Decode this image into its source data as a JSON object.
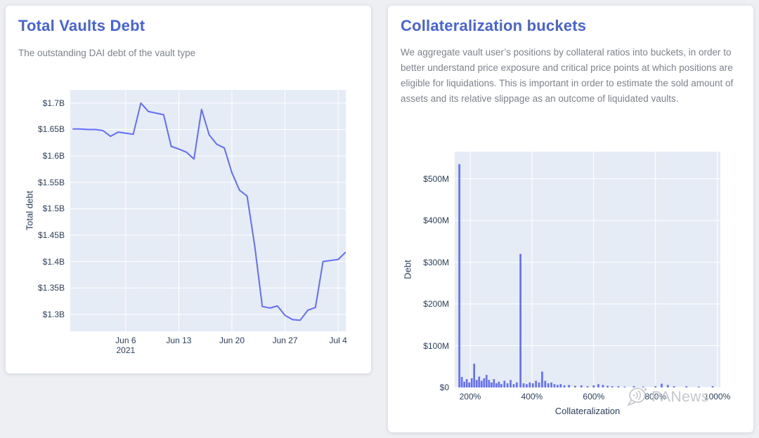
{
  "cards": {
    "total_vaults_debt": {
      "title": "Total Vaults Debt",
      "subtitle": "The outstanding DAI debt of the vault type"
    },
    "collateralization_buckets": {
      "title": "Collateralization buckets",
      "description": "We aggregate vault user’s positions by collateral ratios into buckets, in order to better understand price exposure and critical price points at which positions are eligible for liquidations. This is important in order to estimate the sold amount of assets and its relative slippage as an outcome of liquidated vaults."
    }
  },
  "watermark": {
    "text": "PANews"
  },
  "colors": {
    "heading_accent": "#4664d8",
    "series": "#636efa",
    "plot_background": "#e5ecf6",
    "gridline": "#ffffff",
    "axis_text": "#2a3f5f",
    "muted_text": "#7d838c",
    "page_background": "#edeff2",
    "card_background": "#ffffff",
    "watermark_gray": "#c3c7cd"
  },
  "chart_data": [
    {
      "type": "line",
      "title": "Total Vaults Debt",
      "ylabel": "Total debt",
      "y_unit": "USD billions (DAI debt)",
      "x_unit": "days since 2021-05-31",
      "xlim": [
        -1.3,
        35.0
      ],
      "ylim": [
        1.268,
        1.725
      ],
      "grid": true,
      "legend": "none",
      "yticks": {
        "values": [
          1.3,
          1.35,
          1.4,
          1.45,
          1.5,
          1.55,
          1.6,
          1.65,
          1.7
        ],
        "labels": [
          "$1.3B",
          "$1.35B",
          "$1.4B",
          "$1.45B",
          "$1.5B",
          "$1.55B",
          "$1.6B",
          "$1.65B",
          "$1.7B"
        ]
      },
      "xticks": {
        "values": [
          6,
          13,
          20,
          27,
          34
        ],
        "labels": [
          "Jun 6",
          "Jun 13",
          "Jun 20",
          "Jun 27",
          "Jul 4"
        ],
        "sublabels": [
          "2021",
          "",
          "",
          "",
          ""
        ]
      },
      "x": [
        -1,
        0,
        1,
        2,
        3,
        4,
        5,
        6,
        7,
        8,
        9,
        10,
        11,
        12,
        13,
        14,
        15,
        16,
        17,
        18,
        19,
        20,
        21,
        22,
        23,
        24,
        25,
        26,
        27,
        28,
        29,
        30,
        31,
        32,
        33,
        34,
        35
      ],
      "y": [
        1.651,
        1.651,
        1.65,
        1.65,
        1.648,
        1.637,
        1.645,
        1.643,
        1.641,
        1.7,
        1.684,
        1.681,
        1.678,
        1.618,
        1.613,
        1.607,
        1.594,
        1.688,
        1.64,
        1.622,
        1.615,
        1.568,
        1.535,
        1.524,
        1.43,
        1.315,
        1.312,
        1.316,
        1.298,
        1.29,
        1.289,
        1.308,
        1.313,
        1.4,
        1.402,
        1.404,
        1.418
      ]
    },
    {
      "type": "bar",
      "title": "Collateralization buckets",
      "xlabel": "Collateralization",
      "ylabel": "Debt",
      "y_unit": "USD millions (DAI debt)",
      "x_unit": "collateralization ratio %",
      "xlim": [
        150,
        1010
      ],
      "ylim": [
        0,
        565
      ],
      "grid": true,
      "legend": "none",
      "bar_width_pct": 6,
      "yticks": {
        "values": [
          0,
          100,
          200,
          300,
          400,
          500
        ],
        "labels": [
          "$0",
          "$100M",
          "$200M",
          "$300M",
          "$400M",
          "$500M"
        ]
      },
      "xticks": {
        "values": [
          200,
          400,
          600,
          800,
          1000
        ],
        "labels": [
          "200%",
          "400%",
          "600%",
          "800%",
          "1000%"
        ]
      },
      "bars": [
        [
          165,
          535
        ],
        [
          173,
          25
        ],
        [
          181,
          14
        ],
        [
          189,
          20
        ],
        [
          197,
          12
        ],
        [
          205,
          22
        ],
        [
          213,
          57
        ],
        [
          221,
          18
        ],
        [
          229,
          26
        ],
        [
          237,
          16
        ],
        [
          245,
          22
        ],
        [
          253,
          30
        ],
        [
          261,
          18
        ],
        [
          269,
          12
        ],
        [
          277,
          20
        ],
        [
          285,
          10
        ],
        [
          293,
          14
        ],
        [
          301,
          8
        ],
        [
          311,
          16
        ],
        [
          321,
          10
        ],
        [
          331,
          18
        ],
        [
          341,
          8
        ],
        [
          351,
          12
        ],
        [
          363,
          320
        ],
        [
          373,
          10
        ],
        [
          383,
          8
        ],
        [
          393,
          12
        ],
        [
          403,
          10
        ],
        [
          413,
          16
        ],
        [
          423,
          12
        ],
        [
          433,
          38
        ],
        [
          443,
          16
        ],
        [
          453,
          10
        ],
        [
          463,
          12
        ],
        [
          473,
          8
        ],
        [
          483,
          6
        ],
        [
          493,
          8
        ],
        [
          505,
          5
        ],
        [
          520,
          6
        ],
        [
          540,
          4
        ],
        [
          560,
          5
        ],
        [
          580,
          3
        ],
        [
          600,
          5
        ],
        [
          615,
          8
        ],
        [
          630,
          6
        ],
        [
          645,
          4
        ],
        [
          660,
          3
        ],
        [
          680,
          3
        ],
        [
          700,
          2
        ],
        [
          730,
          3
        ],
        [
          760,
          2
        ],
        [
          800,
          3
        ],
        [
          820,
          9
        ],
        [
          840,
          6
        ],
        [
          860,
          3
        ],
        [
          900,
          3
        ],
        [
          940,
          2
        ],
        [
          985,
          3
        ]
      ]
    }
  ]
}
